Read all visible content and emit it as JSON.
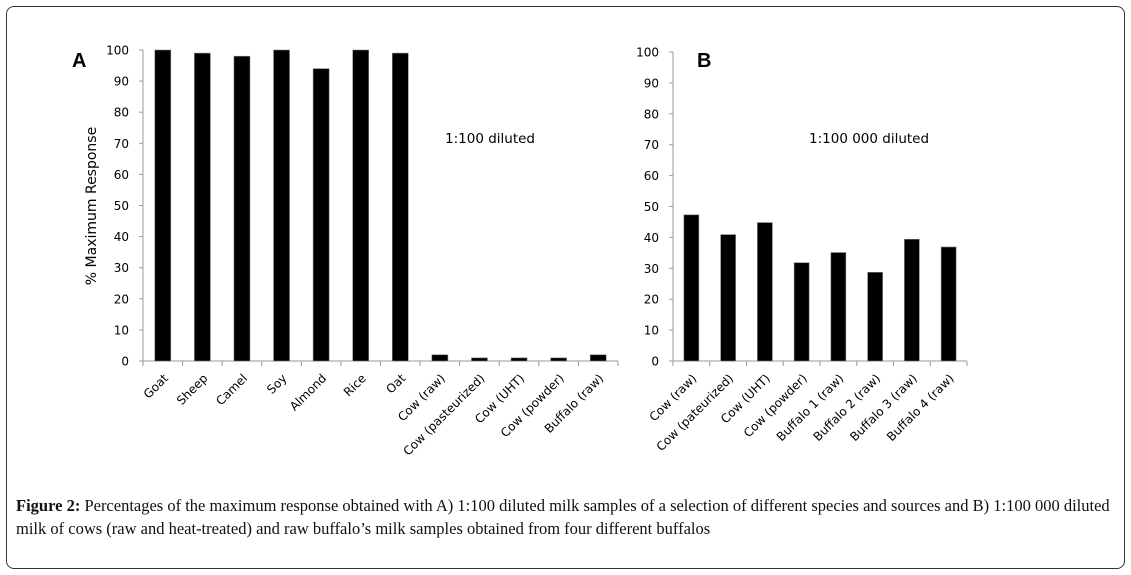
{
  "chart_data": [
    {
      "type": "bar",
      "panel": "A",
      "title": "",
      "annotation": "1:100 diluted",
      "xlabel": "",
      "ylabel": "% Maximum Response",
      "ylim": [
        0,
        100
      ],
      "yticks": [
        0,
        10,
        20,
        30,
        40,
        50,
        60,
        70,
        80,
        90,
        100
      ],
      "grid": false,
      "categories": [
        "Goat",
        "Sheep",
        "Camel",
        "Soy",
        "Almond",
        "Rice",
        "Oat",
        "Cow (raw)",
        "Cow (pasteurized)",
        "Cow (UHT)",
        "Cow (powder)",
        "Buffalo (raw)"
      ],
      "values": [
        100,
        99,
        98,
        100,
        94,
        100,
        99,
        2,
        1,
        1,
        1,
        2
      ],
      "bar_color": "#000000"
    },
    {
      "type": "bar",
      "panel": "B",
      "title": "",
      "annotation": "1:100 000 diluted",
      "xlabel": "",
      "ylabel": "",
      "ylim": [
        0,
        100
      ],
      "yticks": [
        0,
        10,
        20,
        30,
        40,
        50,
        60,
        70,
        80,
        90,
        100
      ],
      "grid": false,
      "categories": [
        "Cow (raw)",
        "Cow (pateurized)",
        "Cow (UHT)",
        "Cow (powder)",
        "Buffalo 1 (raw)",
        "Buffalo 2 (raw)",
        "Buffalo 3 (raw)",
        "Buffalo 4 (raw)"
      ],
      "values": [
        47.3,
        40.9,
        44.8,
        31.8,
        35.1,
        28.7,
        39.4,
        36.9
      ],
      "bar_color": "#000000"
    }
  ],
  "caption": {
    "label": "Figure 2:",
    "text": " Percentages of the maximum response obtained with A) 1:100 diluted milk samples of a selection of different species and sources and B) 1:100 000 diluted milk of cows (raw and heat-treated) and raw buffalo’s milk samples obtained from four different buffalos"
  }
}
